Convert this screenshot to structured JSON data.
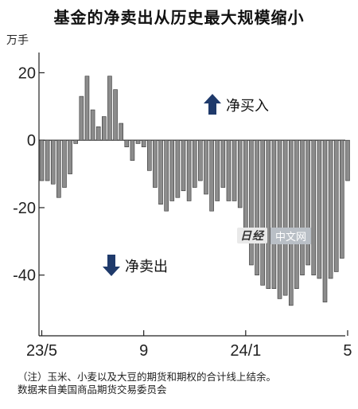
{
  "chart_data": {
    "type": "bar",
    "title": "基金的净卖出从历史最大规模缩小",
    "ylabel": "万手",
    "ylim": [
      -58,
      26
    ],
    "yticks": [
      20,
      0,
      -20,
      -40
    ],
    "xtick_labels": [
      "23/5",
      "9",
      "24/1",
      "5"
    ],
    "xtick_indices": [
      0,
      18,
      36,
      54
    ],
    "values": [
      -12,
      -12,
      -13,
      -17,
      -14,
      -10,
      -1,
      13,
      19,
      9,
      4,
      7,
      19,
      15,
      5,
      -2,
      -6,
      -1,
      -2,
      -9,
      -14,
      -19,
      -21,
      -18,
      -17,
      -15,
      -18,
      -14,
      -12,
      -16,
      -21,
      -18,
      -14,
      -18,
      -18,
      -20,
      -30,
      -37,
      -40,
      -43,
      -44,
      -44,
      -47,
      -46,
      -49,
      -44,
      -40,
      -37,
      -40,
      -41,
      -48,
      -41,
      -39,
      -35,
      -12
    ],
    "bar_color": "#8c8c8c",
    "annotations": [
      {
        "text": "净买入",
        "arrow": "up"
      },
      {
        "text": "净卖出",
        "arrow": "down"
      }
    ]
  },
  "watermark": {
    "logo": "日经",
    "text": "中文网"
  },
  "footnote": {
    "line1": "（注）玉米、小麦以及大豆的期货和期权的合计线上结余。",
    "line2": "数据来自美国商品期货交易委员会"
  }
}
